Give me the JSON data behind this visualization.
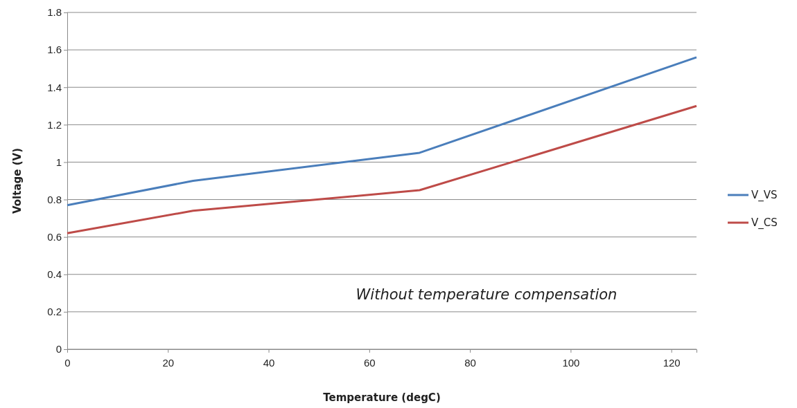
{
  "chart_data": {
    "type": "line",
    "xlabel": "Temperature (degC)",
    "ylabel": "Voltage (V)",
    "x": [
      0,
      25,
      70,
      125
    ],
    "series": [
      {
        "name": "V_VS",
        "color": "#4a7ebb",
        "values": [
          0.77,
          0.9,
          1.05,
          1.56
        ]
      },
      {
        "name": "V_CS",
        "color": "#be4b48",
        "values": [
          0.62,
          0.74,
          0.85,
          1.3
        ]
      }
    ],
    "xlim": [
      0,
      125
    ],
    "xticks": [
      0,
      20,
      40,
      60,
      80,
      100,
      120
    ],
    "ylim": [
      0,
      1.8
    ],
    "yticks": [
      0,
      0.2,
      0.4,
      0.6,
      0.8,
      1,
      1.2,
      1.4,
      1.6,
      1.8
    ],
    "grid": "y",
    "legend": "right",
    "marker": "none",
    "line_style": "solid",
    "annotations": [
      "Without temperature compensation"
    ]
  }
}
